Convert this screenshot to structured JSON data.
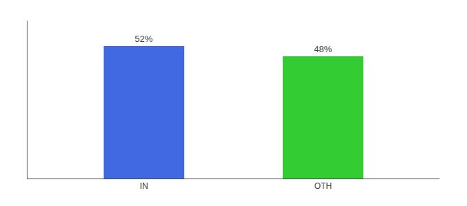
{
  "chart_data": {
    "type": "bar",
    "categories": [
      "IN",
      "OTH"
    ],
    "values": [
      52,
      48
    ],
    "value_labels": [
      "52%",
      "48%"
    ],
    "colors": [
      "#4169e1",
      "#33cc33"
    ],
    "ylim": [
      0,
      62
    ],
    "data_labels": true,
    "tick_labels": "x",
    "grid": false
  }
}
